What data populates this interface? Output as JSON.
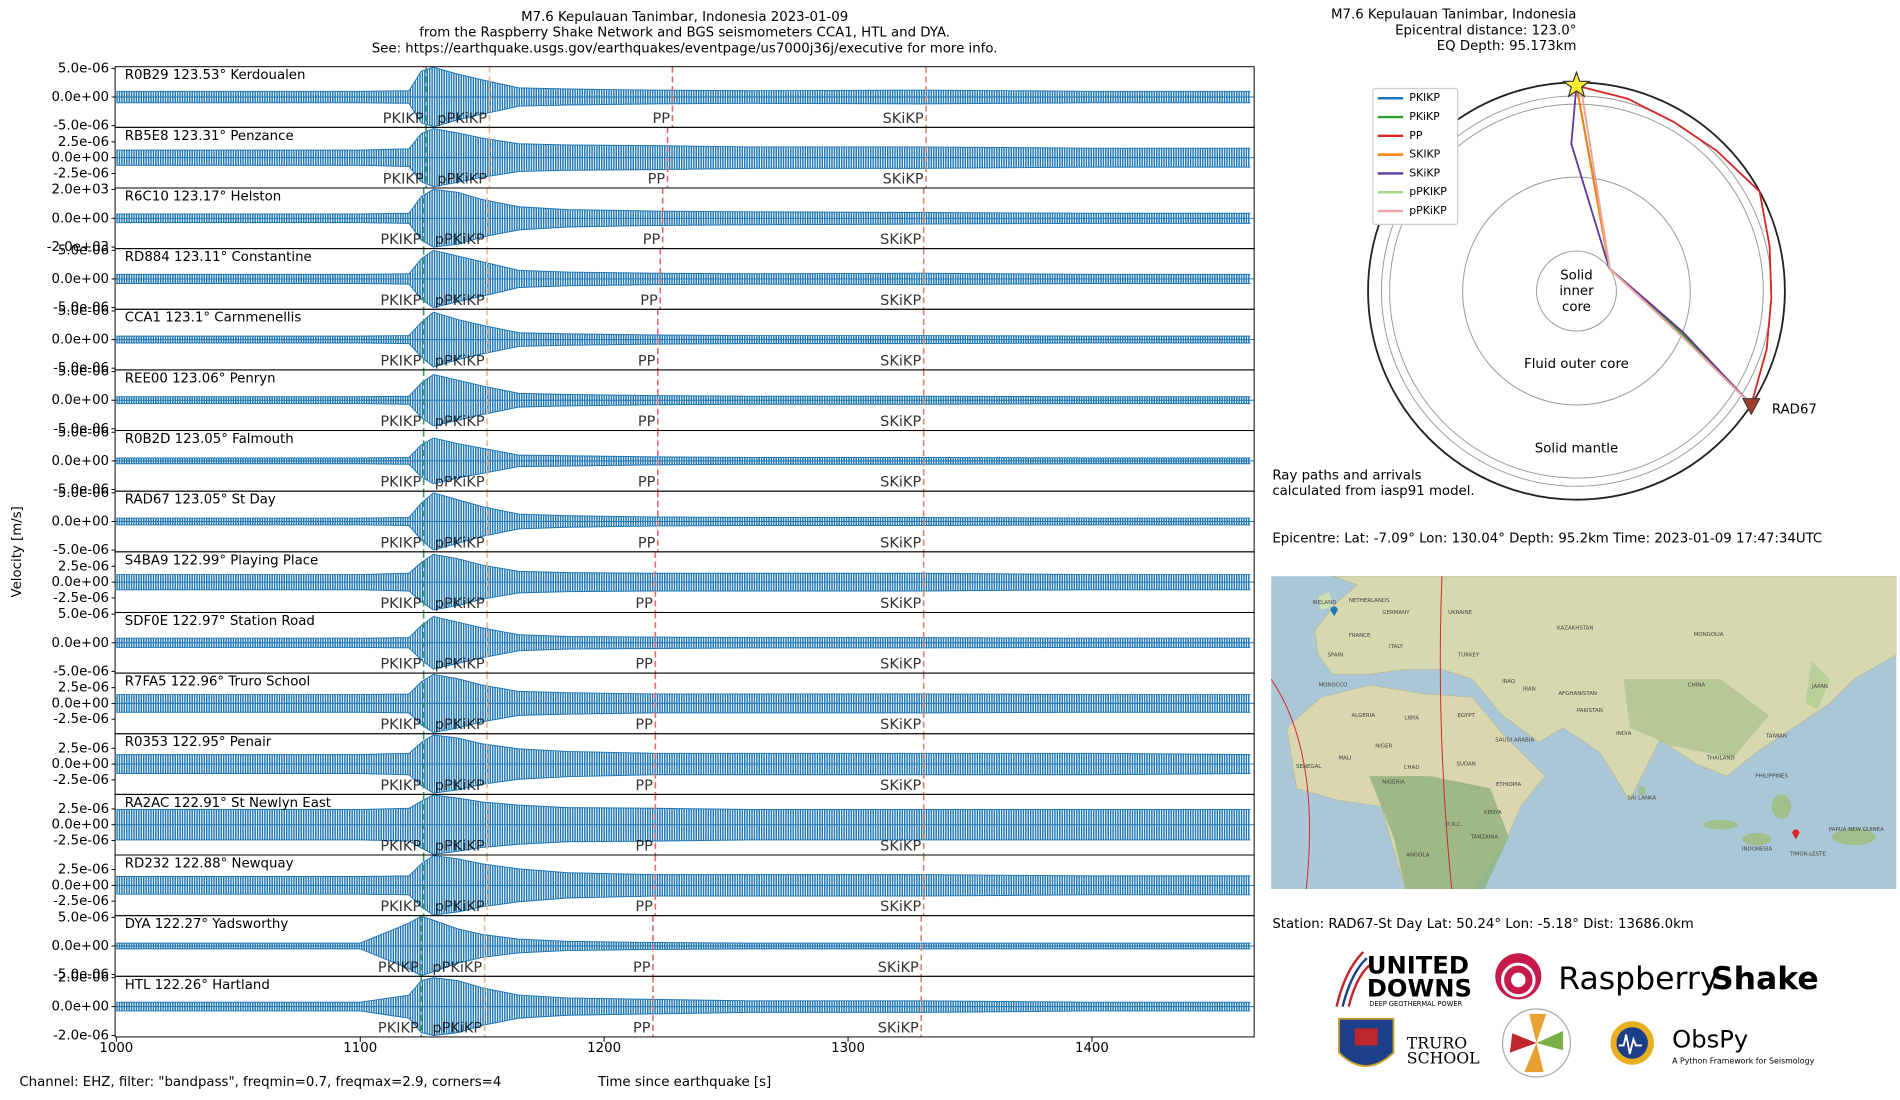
{
  "chart_data": [
    {
      "type": "area",
      "title": "M7.6 Kepulauan Tanimbar, Indonesia 2023-01-09",
      "subtitle": "from the Raspberry Shake Network and BGS seismometers CCA1, HTL and DYA.",
      "caption": "See: https://earthquake.usgs.gov/earthquakes/eventpage/us7000j36j/executive for more info.",
      "ylabel": "Velocity [m/s]",
      "xlabel": "Time since earthquake [s]",
      "footnote": "Channel: EHZ, filter: \"bandpass\", freqmin=0.7, freqmax=2.9, corners=4",
      "color": "#1f77b4",
      "xlim": [
        999.5,
        1466.5
      ],
      "xticks": [
        1000,
        1100,
        1200,
        1300,
        1400
      ],
      "phases": [
        {
          "name": "PKIKP",
          "color": "#3f9a62"
        },
        {
          "name": "pPKiKP",
          "color": "#eab58e"
        },
        {
          "name": "PP",
          "color": "#e46a6a"
        },
        {
          "name": "SKiKP",
          "color": "#d9836f"
        }
      ],
      "x": [
        1000,
        1100,
        1120,
        1125,
        1130,
        1140,
        1150,
        1165,
        1185,
        1220,
        1260,
        1330,
        1400,
        1465
      ],
      "traces": [
        {
          "name": "R0B29 123.53° Kerdoualen",
          "ylim": [
            -5.3e-06,
            5.3e-06
          ],
          "yticks": [
            {
              "value": 5e-06,
              "label": "5.0e-06"
            },
            {
              "value": 0,
              "label": "0.0e+00"
            },
            {
              "value": -5e-06,
              "label": "-5.0e-06"
            }
          ],
          "values": [
            1e-06,
            1e-06,
            1.1e-06,
            4.5e-06,
            5.2e-06,
            4e-06,
            3e-06,
            1.6e-06,
            1.4e-06,
            1.2e-06,
            1.1e-06,
            1.2e-06,
            1e-06,
            1e-06
          ],
          "arrivals": [
            1127,
            1153,
            1228,
            1332
          ]
        },
        {
          "name": "RB5E8 123.31° Penzance",
          "ylim": [
            -4.8e-06,
            4.8e-06
          ],
          "yticks": [
            {
              "value": 2.5e-06,
              "label": "2.5e-06"
            },
            {
              "value": 0,
              "label": "0.0e+00"
            },
            {
              "value": -2.5e-06,
              "label": "-2.5e-06"
            }
          ],
          "values": [
            1.2e-06,
            1.2e-06,
            1.4e-06,
            3.8e-06,
            4.6e-06,
            3.9e-06,
            3.1e-06,
            2.2e-06,
            2e-06,
            1.9e-06,
            1.7e-06,
            1.7e-06,
            1.5e-06,
            1.5e-06
          ],
          "arrivals": [
            1127,
            1153,
            1226,
            1332
          ]
        },
        {
          "name": "R6C10 123.17° Helston",
          "ylim": [
            -2100,
            2100
          ],
          "yticks": [
            {
              "value": 2000,
              "label": "2.0e+03"
            },
            {
              "value": 0,
              "label": "0.0e+00"
            },
            {
              "value": -2000,
              "label": "-2.0e+03"
            }
          ],
          "values": [
            300,
            300,
            350,
            1500,
            2000,
            1800,
            1300,
            800,
            600,
            500,
            450,
            400,
            350,
            350
          ],
          "arrivals": [
            1126,
            1152,
            1224,
            1331
          ]
        },
        {
          "name": "RD884 123.11° Constantine",
          "ylim": [
            -5.3e-06,
            5.3e-06
          ],
          "yticks": [
            {
              "value": 5e-06,
              "label": "5.0e-06"
            },
            {
              "value": 0,
              "label": "0.0e+00"
            },
            {
              "value": -5e-06,
              "label": "-5.0e-06"
            }
          ],
          "values": [
            8e-07,
            8e-07,
            9e-07,
            3.5e-06,
            5e-06,
            4e-06,
            3e-06,
            1.5e-06,
            1.2e-06,
            1e-06,
            9e-07,
            1e-06,
            8e-07,
            8e-07
          ],
          "arrivals": [
            1126,
            1152,
            1223,
            1331
          ]
        },
        {
          "name": "CCA1 123.1° Carnmenellis",
          "ylim": [
            -5.3e-06,
            5.3e-06
          ],
          "yticks": [
            {
              "value": 5e-06,
              "label": "5.0e-06"
            },
            {
              "value": 0,
              "label": "0.0e+00"
            },
            {
              "value": -5e-06,
              "label": "-5.0e-06"
            }
          ],
          "values": [
            6e-07,
            6e-07,
            7e-07,
            3e-06,
            4.8e-06,
            3.5e-06,
            2.5e-06,
            1.2e-06,
            1e-06,
            8e-07,
            7e-07,
            7e-07,
            6e-07,
            6e-07
          ],
          "arrivals": [
            1126,
            1152,
            1222,
            1331
          ]
        },
        {
          "name": "REE00 123.06° Penryn",
          "ylim": [
            -5.3e-06,
            5.3e-06
          ],
          "yticks": [
            {
              "value": 5e-06,
              "label": "5.0e-06"
            },
            {
              "value": 0,
              "label": "0.0e+00"
            },
            {
              "value": -5e-06,
              "label": "-5.0e-06"
            }
          ],
          "values": [
            6e-07,
            6e-07,
            7e-07,
            3e-06,
            4.5e-06,
            3.5e-06,
            2.5e-06,
            1.2e-06,
            1e-06,
            8e-07,
            7e-07,
            7e-07,
            6e-07,
            6e-07
          ],
          "arrivals": [
            1126,
            1152,
            1222,
            1331
          ]
        },
        {
          "name": "R0B2D 123.05° Falmouth",
          "ylim": [
            -5.3e-06,
            5.3e-06
          ],
          "yticks": [
            {
              "value": 5e-06,
              "label": "5.0e-06"
            },
            {
              "value": 0,
              "label": "0.0e+00"
            },
            {
              "value": -5e-06,
              "label": "-5.0e-06"
            }
          ],
          "values": [
            5e-07,
            5e-07,
            6e-07,
            2.8e-06,
            4e-06,
            3e-06,
            2.2e-06,
            1e-06,
            9e-07,
            7e-07,
            6e-07,
            6e-07,
            5e-07,
            5e-07
          ],
          "arrivals": [
            1126,
            1152,
            1222,
            1331
          ]
        },
        {
          "name": "RAD67 123.05° St Day",
          "ylim": [
            -5.3e-06,
            5.3e-06
          ],
          "yticks": [
            {
              "value": 5e-06,
              "label": "5.0e-06"
            },
            {
              "value": 0,
              "label": "0.0e+00"
            },
            {
              "value": -5e-06,
              "label": "-5.0e-06"
            }
          ],
          "values": [
            6e-07,
            6e-07,
            7e-07,
            3.2e-06,
            5e-06,
            3.8e-06,
            2.6e-06,
            1.3e-06,
            1e-06,
            8e-07,
            7e-07,
            7e-07,
            6e-07,
            6e-07
          ],
          "arrivals": [
            1126,
            1152,
            1222,
            1331
          ]
        },
        {
          "name": "S4BA9 122.99° Playing Place",
          "ylim": [
            -4.8e-06,
            4.8e-06
          ],
          "yticks": [
            {
              "value": 2.5e-06,
              "label": "2.5e-06"
            },
            {
              "value": 0,
              "label": "0.0e+00"
            },
            {
              "value": -2.5e-06,
              "label": "-2.5e-06"
            }
          ],
          "values": [
            1.2e-06,
            1.2e-06,
            1.4e-06,
            3.1e-06,
            4.4e-06,
            3.7e-06,
            2.7e-06,
            1.7e-06,
            1.5e-06,
            1.4e-06,
            1.4e-06,
            1.4e-06,
            1.2e-06,
            1.2e-06
          ],
          "arrivals": [
            1126,
            1152,
            1221,
            1331
          ]
        },
        {
          "name": "SDF0E 122.97° Station Road",
          "ylim": [
            -5.3e-06,
            5.3e-06
          ],
          "yticks": [
            {
              "value": 5e-06,
              "label": "5.0e-06"
            },
            {
              "value": 0,
              "label": "0.0e+00"
            },
            {
              "value": -5e-06,
              "label": "-5.0e-06"
            }
          ],
          "values": [
            8e-07,
            8e-07,
            9e-07,
            3e-06,
            4.6e-06,
            3.6e-06,
            2.6e-06,
            1.4e-06,
            1.1e-06,
            1e-06,
            9e-07,
            9e-07,
            8e-07,
            8e-07
          ],
          "arrivals": [
            1126,
            1152,
            1221,
            1331
          ]
        },
        {
          "name": "R7FA5 122.96° Truro School",
          "ylim": [
            -4.8e-06,
            4.8e-06
          ],
          "yticks": [
            {
              "value": 2.5e-06,
              "label": "2.5e-06"
            },
            {
              "value": 0,
              "label": "0.0e+00"
            },
            {
              "value": -2.5e-06,
              "label": "-2.5e-06"
            }
          ],
          "values": [
            1.4e-06,
            1.4e-06,
            1.5e-06,
            3.4e-06,
            4.6e-06,
            3.9e-06,
            2.9e-06,
            1.9e-06,
            1.7e-06,
            1.5e-06,
            1.5e-06,
            1.5e-06,
            1.4e-06,
            1.4e-06
          ],
          "arrivals": [
            1126,
            1152,
            1221,
            1331
          ]
        },
        {
          "name": "R0353 122.95° Penair",
          "ylim": [
            -4.8e-06,
            4.8e-06
          ],
          "yticks": [
            {
              "value": 2.5e-06,
              "label": "2.5e-06"
            },
            {
              "value": 0,
              "label": "0.0e+00"
            },
            {
              "value": -2.5e-06,
              "label": "-2.5e-06"
            }
          ],
          "values": [
            1.5e-06,
            1.5e-06,
            1.7e-06,
            3.4e-06,
            4.6e-06,
            4.1e-06,
            3.2e-06,
            2.4e-06,
            2e-06,
            1.7e-06,
            1.7e-06,
            1.7e-06,
            1.7e-06,
            1.5e-06
          ],
          "arrivals": [
            1126,
            1152,
            1221,
            1331
          ]
        },
        {
          "name": "RA2AC 122.91° St Newlyn East",
          "ylim": [
            -4.8e-06,
            4.8e-06
          ],
          "yticks": [
            {
              "value": 2.5e-06,
              "label": "2.5e-06"
            },
            {
              "value": 0,
              "label": "0.0e+00"
            },
            {
              "value": -2.5e-06,
              "label": "-2.5e-06"
            }
          ],
          "values": [
            2.4e-06,
            2.4e-06,
            2.6e-06,
            3.7e-06,
            4.7e-06,
            4.2e-06,
            3.6e-06,
            3.1e-06,
            2.7e-06,
            2.6e-06,
            2.4e-06,
            2.4e-06,
            2.4e-06,
            2.4e-06
          ],
          "arrivals": [
            1126,
            1152,
            1221,
            1331
          ]
        },
        {
          "name": "RD232 122.88° Newquay",
          "ylim": [
            -4.8e-06,
            4.8e-06
          ],
          "yticks": [
            {
              "value": 2.5e-06,
              "label": "2.5e-06"
            },
            {
              "value": 0,
              "label": "0.0e+00"
            },
            {
              "value": -2.5e-06,
              "label": "-2.5e-06"
            }
          ],
          "values": [
            1.4e-06,
            1.4e-06,
            1.5e-06,
            3.4e-06,
            4.7e-06,
            4.2e-06,
            3.4e-06,
            2.6e-06,
            2e-06,
            1.7e-06,
            1.7e-06,
            1.7e-06,
            1.5e-06,
            1.5e-06
          ],
          "arrivals": [
            1126,
            1152,
            1221,
            1331
          ]
        },
        {
          "name": "DYA 122.27° Yadsworthy",
          "ylim": [
            -5.3e-06,
            5.3e-06
          ],
          "yticks": [
            {
              "value": 5e-06,
              "label": "5.0e-06"
            },
            {
              "value": 0,
              "label": "0.0e+00"
            },
            {
              "value": -5e-06,
              "label": "-5.0e-06"
            }
          ],
          "values": [
            5e-07,
            5e-07,
            4e-06,
            5.2e-06,
            4.5e-06,
            3e-06,
            2e-06,
            1.2e-06,
            8e-07,
            6e-07,
            5e-07,
            5e-07,
            5e-07,
            5e-07
          ],
          "arrivals": [
            1125,
            1151,
            1220,
            1330
          ]
        },
        {
          "name": "HTL 122.26° Hartland",
          "ylim": [
            -2.1e-06,
            2.1e-06
          ],
          "yticks": [
            {
              "value": 2e-06,
              "label": "2.0e-06"
            },
            {
              "value": 0,
              "label": "0.0e+00"
            },
            {
              "value": -2e-06,
              "label": "-2.0e-06"
            }
          ],
          "values": [
            3e-07,
            3e-07,
            8e-07,
            1.8e-06,
            2e-06,
            1.8e-06,
            1.3e-06,
            8e-07,
            6e-07,
            5e-07,
            4e-07,
            4e-07,
            3e-07,
            3e-07
          ],
          "arrivals": [
            1125,
            1151,
            1220,
            1330
          ]
        }
      ]
    },
    {
      "type": "polar",
      "title": "M7.6 Kepulauan Tanimbar, Indonesia",
      "subtitle": "Epicentral distance: 123.0°",
      "caption": "EQ Depth: 95.173km",
      "rlim": [
        0,
        6371
      ],
      "circles": [
        1221.5,
        3480,
        5711,
        5961
      ],
      "source": {
        "theta": 0,
        "r": 6275.827
      },
      "station": {
        "name": "RAD67",
        "theta": 123.0,
        "r": 6371
      },
      "regions": {
        "inner": [
          "Solid",
          "inner",
          "core"
        ],
        "outer": "Fluid outer core",
        "mantle": "Solid mantle"
      },
      "annotation": [
        "Ray paths and arrivals",
        "calculated from iasp91 model."
      ],
      "series": [
        {
          "name": "PKIKP",
          "color": "#1f77b4",
          "theta": [
            0,
            56,
            112,
            123
          ],
          "r": [
            6276,
            1221,
            3480,
            6371
          ]
        },
        {
          "name": "PKiKP",
          "color": "#2ca02c",
          "theta": [
            0,
            57,
            112,
            123
          ],
          "r": [
            6276,
            1221,
            3480,
            6371
          ]
        },
        {
          "name": "PP",
          "color": "#d62728",
          "theta": [
            0,
            15,
            30,
            45,
            61.5,
            77,
            92,
            107,
            123
          ],
          "r": [
            6276,
            6080,
            5960,
            6060,
            6371,
            6060,
            5960,
            6080,
            6371
          ]
        },
        {
          "name": "SKIKP",
          "color": "#ff7f0e",
          "theta": [
            0,
            55,
            111,
            123
          ],
          "r": [
            6276,
            1221,
            3480,
            6371
          ]
        },
        {
          "name": "SKiKP",
          "color": "#5b3a9a",
          "theta": [
            0,
            -2,
            55,
            111,
            123
          ],
          "r": [
            6276,
            4500,
            1221,
            3480,
            6371
          ]
        },
        {
          "name": "pPKIKP",
          "color": "#a6d98a",
          "theta": [
            0,
            1,
            56,
            113,
            123
          ],
          "r": [
            6276,
            6371,
            1221,
            3480,
            6371
          ]
        },
        {
          "name": "pPKiKP",
          "color": "#f4a0a0",
          "theta": [
            0,
            1,
            57,
            113,
            123
          ],
          "r": [
            6276,
            6371,
            1221,
            3480,
            6371
          ]
        }
      ]
    }
  ],
  "info": {
    "epicentre": "Epicentre: Lat: -7.09°  Lon: 130.04°  Depth: 95.2km  Time: 2023-01-09 17:47:34UTC",
    "station": "Station: RAD67-St Day  Lat: 50.24°  Lon: -5.18°  Dist: 13686.0km"
  },
  "map": {
    "labels": [
      "IRELAND",
      "NETHERLANDS",
      "GERMANY",
      "FRANCE",
      "SPAIN",
      "ITALY",
      "UKRAINE",
      "TURKEY",
      "KAZAKHSTAN",
      "MONGOLIA",
      "IRAN",
      "AFGHANISTAN",
      "PAKISTAN",
      "INDIA",
      "CHINA",
      "MOROCCO",
      "ALGERIA",
      "LIBYA",
      "EGYPT",
      "IRAQ",
      "SAUDI ARABIA",
      "SUDAN",
      "CHAD",
      "MALI",
      "NIGER",
      "NIGERIA",
      "SENEGAL",
      "ETHIOPIA",
      "KENYA",
      "D.R.C.",
      "TANZANIA",
      "ANGOLA",
      "SRI LANKA",
      "THAILAND",
      "TAIWAN",
      "PHILIPPINES",
      "JAPAN",
      "INDONESIA",
      "TIMOR-LESTE",
      "PAPUA NEW GUINEA"
    ]
  },
  "logos": {
    "united": "UNITED",
    "downs": "DOWNS",
    "united_sub": "DEEP GEOTHERMAL POWER",
    "raspberry": "Raspberry",
    "shake": "Shake",
    "truro": "TRURO",
    "school": "SCHOOL",
    "obspy": "ObsPy",
    "obspy_sub": "A Python Framework for Seismology"
  }
}
